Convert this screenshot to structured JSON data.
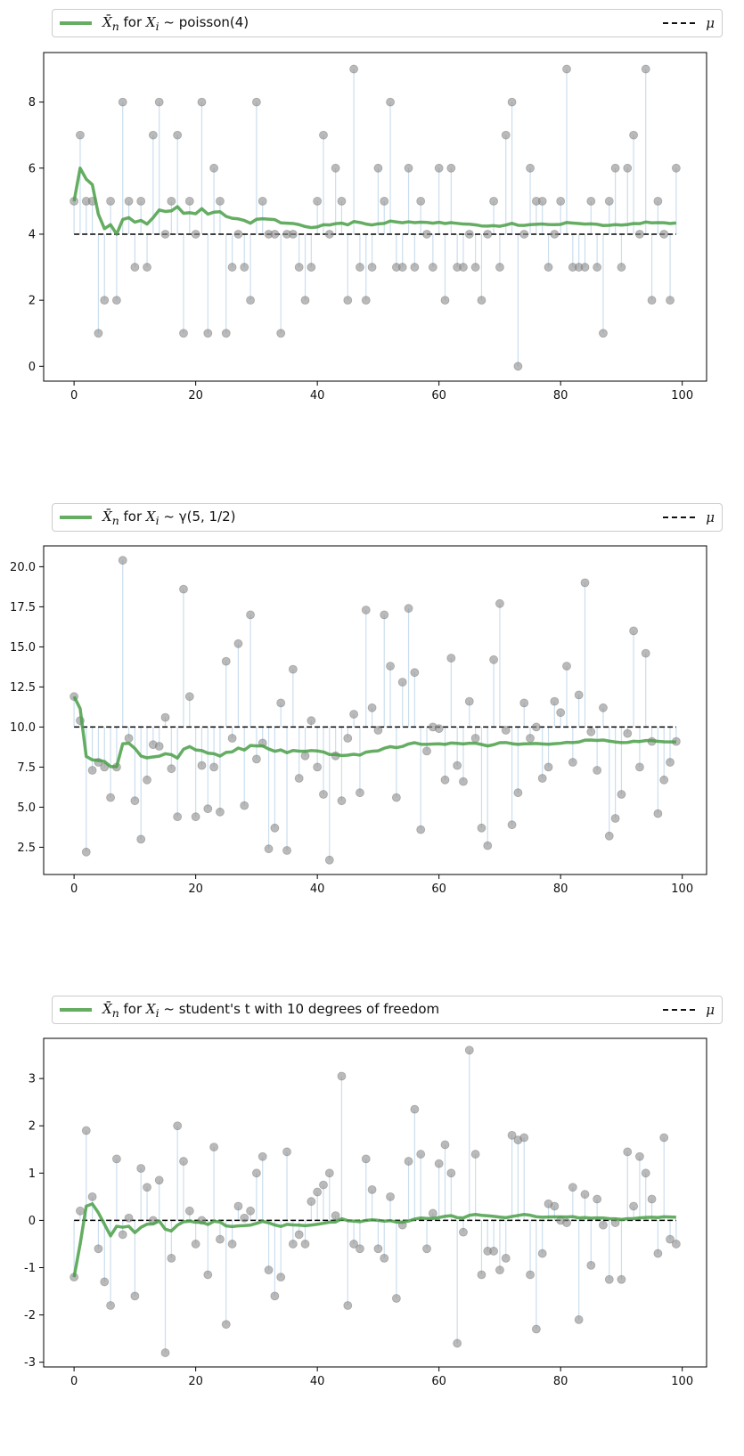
{
  "colors": {
    "running_mean": "#4a9f47",
    "points": "#8c8c8c",
    "stems": "#a9c8e2",
    "mu_line": "#000000"
  },
  "legend": {
    "mu_label": "μ"
  },
  "chart_data": [
    {
      "type": "line",
      "legend_label": "X̄n for Xi ~ poisson(4)",
      "legend_dist": "poisson(4)",
      "legend_placement": "top (above plot)",
      "mu": 4,
      "xlim": [
        -5,
        104
      ],
      "ylim": [
        -0.45,
        9.5
      ],
      "x_ticks": [
        0,
        20,
        40,
        60,
        80,
        100
      ],
      "y_ticks": [
        0,
        2,
        4,
        6,
        8
      ],
      "grid": false,
      "samples": [
        5,
        7,
        5,
        5,
        1,
        2,
        5,
        2,
        8,
        5,
        3,
        5,
        3,
        7,
        8,
        4,
        5,
        7,
        1,
        5,
        4,
        8,
        1,
        6,
        5,
        1,
        3,
        4,
        3,
        2,
        8,
        5,
        4,
        4,
        1,
        4,
        4,
        3,
        2,
        3,
        5,
        7,
        4,
        6,
        5,
        2,
        9,
        3,
        2,
        3,
        6,
        5,
        8,
        3,
        3,
        6,
        3,
        5,
        4,
        3,
        6,
        2,
        6,
        3,
        3,
        4,
        3,
        2,
        4,
        5,
        3,
        7,
        8,
        0,
        4,
        6,
        5,
        5,
        3,
        4,
        5,
        9,
        3,
        3,
        3,
        5,
        3,
        1,
        5,
        6,
        3,
        6,
        7,
        4,
        9,
        2,
        5,
        4,
        2,
        6
      ],
      "series": [
        {
          "name": "X̄n for Xi ~ poisson(4)",
          "role": "running_mean"
        },
        {
          "name": "μ",
          "role": "mean_line"
        }
      ]
    },
    {
      "type": "line",
      "legend_label": "X̄n for Xi ~ γ(5, 1/2)",
      "legend_dist": "γ(5, 1/2)",
      "legend_placement": "top (above plot)",
      "mu": 10,
      "xlim": [
        -5,
        104
      ],
      "ylim": [
        0.8,
        21.3
      ],
      "x_ticks": [
        0,
        20,
        40,
        60,
        80,
        100
      ],
      "y_ticks": [
        2.5,
        5.0,
        7.5,
        10.0,
        12.5,
        15.0,
        17.5,
        20.0
      ],
      "y_tick_labels": [
        "2.5",
        "5.0",
        "7.5",
        "10.0",
        "12.5",
        "15.0",
        "17.5",
        "20.0"
      ],
      "grid": false,
      "samples": [
        11.9,
        10.4,
        2.2,
        7.3,
        7.8,
        7.5,
        5.6,
        7.5,
        20.4,
        9.3,
        5.4,
        3.0,
        6.7,
        8.9,
        8.8,
        10.6,
        7.4,
        4.4,
        18.6,
        11.9,
        4.4,
        7.6,
        4.9,
        7.5,
        4.7,
        14.1,
        9.3,
        15.2,
        5.1,
        17.0,
        8.0,
        9.0,
        2.4,
        3.7,
        11.5,
        2.3,
        13.6,
        6.8,
        8.2,
        10.4,
        7.5,
        5.8,
        1.7,
        8.2,
        5.4,
        9.3,
        10.8,
        5.9,
        17.3,
        11.2,
        9.8,
        17.0,
        13.8,
        5.6,
        12.8,
        17.4,
        13.4,
        3.6,
        8.5,
        10.0,
        9.9,
        6.7,
        14.3,
        7.6,
        6.6,
        11.6,
        9.3,
        3.7,
        2.6,
        14.2,
        17.7,
        9.8,
        3.9,
        5.9,
        11.5,
        9.3,
        10.0,
        6.8,
        7.5,
        11.6,
        10.9,
        13.8,
        7.8,
        12.0,
        19.0,
        9.7,
        7.3,
        11.2,
        3.2,
        4.3,
        5.8,
        9.6,
        16.0,
        7.5,
        14.6,
        9.1,
        4.6,
        6.7,
        7.8,
        9.1
      ],
      "series": [
        {
          "name": "X̄n for Xi ~ γ(5, 1/2)",
          "role": "running_mean"
        },
        {
          "name": "μ",
          "role": "mean_line"
        }
      ]
    },
    {
      "type": "line",
      "legend_label": "X̄n for Xi ~ student's t with 10 degrees of freedom",
      "legend_dist": "student's t with 10 degrees of freedom",
      "legend_placement": "top (above plot)",
      "mu": 0,
      "xlim": [
        -5,
        104
      ],
      "ylim": [
        -3.1,
        3.85
      ],
      "x_ticks": [
        0,
        20,
        40,
        60,
        80,
        100
      ],
      "y_ticks": [
        -3,
        -2,
        -1,
        0,
        1,
        2,
        3
      ],
      "grid": false,
      "samples": [
        -1.2,
        0.2,
        1.9,
        0.5,
        -0.6,
        -1.3,
        -1.8,
        1.3,
        -0.3,
        0.05,
        -1.6,
        1.1,
        0.7,
        0.0,
        0.85,
        -2.8,
        -0.8,
        2.0,
        1.25,
        0.2,
        -0.5,
        0.0,
        -1.15,
        1.55,
        -0.4,
        -2.2,
        -0.5,
        0.3,
        0.05,
        0.2,
        1.0,
        1.35,
        -1.05,
        -1.6,
        -1.2,
        1.45,
        -0.5,
        -0.3,
        -0.5,
        0.4,
        0.6,
        0.75,
        1.0,
        0.1,
        3.05,
        -1.8,
        -0.5,
        -0.6,
        1.3,
        0.65,
        -0.6,
        -0.8,
        0.5,
        -1.65,
        -0.1,
        1.25,
        2.35,
        1.4,
        -0.6,
        0.15,
        1.2,
        1.6,
        1.0,
        -2.6,
        -0.25,
        3.6,
        1.4,
        -1.15,
        -0.65,
        -0.65,
        -1.05,
        -0.8,
        1.8,
        1.7,
        1.75,
        -1.15,
        -2.3,
        -0.7,
        0.35,
        0.3,
        0.0,
        -0.05,
        0.7,
        -2.1,
        0.55,
        -0.95,
        0.45,
        -0.1,
        -1.25,
        -0.05,
        -1.25,
        1.45,
        0.3,
        1.35,
        1.0,
        0.45,
        -0.7,
        1.75,
        -0.4,
        -0.5
      ],
      "series": [
        {
          "name": "X̄n for Xi ~ student's t with 10 degrees of freedom",
          "role": "running_mean"
        },
        {
          "name": "μ",
          "role": "mean_line"
        }
      ]
    }
  ]
}
